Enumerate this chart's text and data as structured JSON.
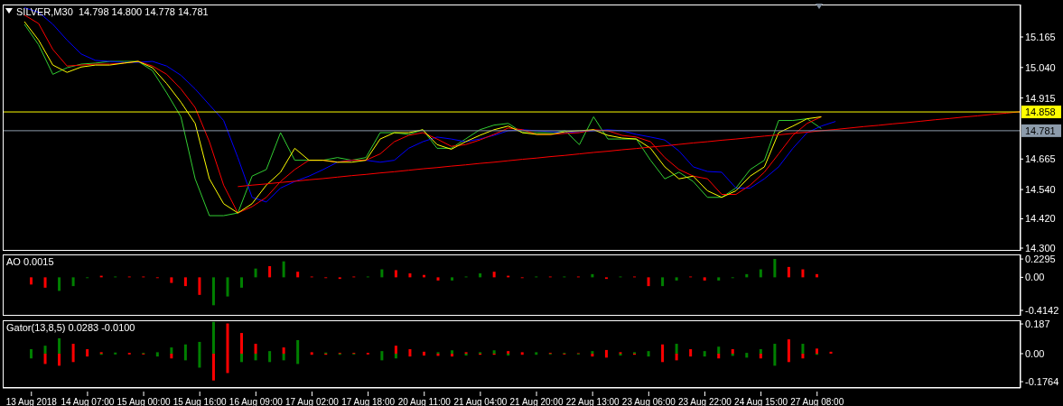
{
  "chart_data": [
    {
      "type": "line",
      "title": "SILVER,M30  14.798 14.800 14.778 14.781",
      "categories": [
        null,
        null,
        null,
        null,
        null,
        null,
        null,
        null,
        null,
        null,
        null,
        null,
        null,
        null,
        null,
        null,
        null,
        null,
        null,
        null,
        null,
        null,
        null,
        null,
        null,
        null,
        null,
        null,
        null,
        null,
        null,
        null,
        null,
        null,
        null,
        null,
        null,
        null,
        null,
        null,
        null,
        null,
        null,
        null,
        null,
        null,
        null,
        null,
        null,
        null,
        null,
        null,
        null,
        null,
        null,
        null,
        null,
        null,
        null,
        null,
        null,
        null,
        null,
        null,
        null,
        null,
        null,
        null,
        null,
        null,
        null
      ],
      "tick_labels": "y",
      "series": [
        {
          "color": "#32cd32",
          "values": [
            15.217,
            15.133,
            15.012,
            15.039,
            15.054,
            15.058,
            15.065,
            15.065,
            15.065,
            15.027,
            14.936,
            14.838,
            14.584,
            14.433,
            14.433,
            14.444,
            14.595,
            14.622,
            14.773,
            14.66,
            14.66,
            14.66,
            14.671,
            14.66,
            14.671,
            14.773,
            14.773,
            14.766,
            14.785,
            14.709,
            14.709,
            14.747,
            14.785,
            14.804,
            14.811,
            14.773,
            14.773,
            14.773,
            14.781,
            14.724,
            14.838,
            14.747,
            14.747,
            14.747,
            14.66,
            14.584,
            14.611,
            14.573,
            14.508,
            14.508,
            14.546,
            14.622,
            14.66,
            14.823,
            14.823,
            14.83,
            14.79,
            null,
            null,
            null,
            null,
            null,
            null,
            null,
            null,
            null,
            null,
            null,
            null,
            null,
            null
          ]
        },
        {
          "color": "#0000ff",
          "values": [
            15.285,
            15.266,
            15.217,
            15.152,
            15.095,
            15.069,
            15.065,
            15.061,
            15.061,
            15.065,
            15.046,
            15.008,
            14.952,
            14.887,
            14.823,
            14.671,
            14.508,
            14.489,
            14.546,
            14.573,
            14.595,
            14.622,
            14.652,
            14.66,
            14.66,
            14.652,
            14.66,
            14.709,
            14.736,
            14.755,
            14.747,
            14.736,
            14.747,
            14.762,
            14.781,
            14.785,
            14.781,
            14.777,
            14.773,
            14.777,
            14.781,
            14.785,
            14.781,
            14.766,
            14.755,
            14.743,
            14.698,
            14.633,
            14.614,
            14.611,
            14.546,
            14.546,
            14.584,
            14.633,
            14.709,
            14.773,
            14.8,
            14.819,
            null,
            null,
            null,
            null,
            null,
            null,
            null,
            null,
            null,
            null,
            null,
            null,
            null
          ]
        },
        {
          "color": "#ff0000",
          "values": [
            15.255,
            15.22,
            15.114,
            15.046,
            15.05,
            15.054,
            15.054,
            15.058,
            15.065,
            15.046,
            15.012,
            14.952,
            14.876,
            14.736,
            14.558,
            14.444,
            14.47,
            14.508,
            14.573,
            14.622,
            14.66,
            14.66,
            14.652,
            14.66,
            14.66,
            14.686,
            14.736,
            14.762,
            14.773,
            14.747,
            14.717,
            14.724,
            14.743,
            14.766,
            14.792,
            14.785,
            14.766,
            14.766,
            14.77,
            14.773,
            14.785,
            14.781,
            14.762,
            14.755,
            14.736,
            14.671,
            14.622,
            14.595,
            14.584,
            14.52,
            14.52,
            14.558,
            14.611,
            14.686,
            14.762,
            14.811,
            14.838,
            null,
            null,
            null,
            null,
            null,
            null,
            null,
            null,
            null,
            null,
            null,
            null,
            null,
            null
          ]
        },
        {
          "color": "#ffff00",
          "values": [
            15.228,
            15.152,
            15.05,
            15.02,
            15.042,
            15.05,
            15.05,
            15.058,
            15.065,
            15.039,
            14.974,
            14.898,
            14.811,
            14.584,
            14.482,
            14.444,
            14.482,
            14.558,
            14.611,
            14.709,
            14.66,
            14.66,
            14.652,
            14.652,
            14.66,
            14.747,
            14.773,
            14.773,
            14.785,
            14.724,
            14.705,
            14.736,
            14.762,
            14.785,
            14.8,
            14.773,
            14.766,
            14.766,
            14.777,
            14.781,
            14.785,
            14.762,
            14.751,
            14.747,
            14.709,
            14.633,
            14.584,
            14.595,
            14.535,
            14.508,
            14.535,
            14.595,
            14.633,
            14.773,
            14.8,
            14.83,
            14.838,
            null,
            null,
            null,
            null,
            null,
            null,
            null,
            null,
            null,
            null,
            null,
            null,
            null,
            null
          ]
        },
        {
          "color": "#ff0000",
          "values": [
            null,
            null,
            null,
            null,
            null,
            null,
            null,
            null,
            null,
            null,
            null,
            null,
            null,
            null,
            null,
            14.552,
            14.558,
            14.563,
            14.569,
            14.574,
            14.58,
            14.585,
            14.591,
            14.597,
            14.602,
            14.608,
            14.613,
            14.619,
            14.625,
            14.63,
            14.636,
            14.641,
            14.647,
            14.652,
            14.658,
            14.664,
            14.669,
            14.675,
            14.68,
            14.686,
            14.692,
            14.697,
            14.703,
            14.708,
            14.714,
            14.719,
            14.725,
            14.731,
            14.736,
            14.742,
            14.747,
            14.753,
            14.759,
            14.764,
            14.77,
            14.775,
            14.781,
            14.786,
            14.792,
            14.798,
            14.803,
            14.809,
            14.814,
            14.82,
            14.826,
            14.831,
            14.837,
            14.842,
            14.848,
            14.853,
            14.859
          ]
        }
      ],
      "ylim": [
        14.289,
        15.298
      ],
      "yticks": [
        {
          "value": 15.165,
          "label": "15.165"
        },
        {
          "value": 15.04,
          "label": "15.040"
        },
        {
          "value": 14.915,
          "label": "14.915"
        },
        {
          "value": 14.665,
          "label": "14.665"
        },
        {
          "value": 14.54,
          "label": "14.540"
        },
        {
          "value": 14.42,
          "label": "14.420"
        },
        {
          "value": 14.3,
          "label": "14.300"
        }
      ],
      "ref_lines": [
        {
          "axis": "y",
          "value": 14.858,
          "label": "14.858",
          "color": "#ffff00"
        },
        {
          "axis": "y",
          "value": 14.781,
          "label": "14.781",
          "color": "#8c9bab"
        }
      ]
    },
    {
      "type": "bar",
      "title": "AO 0.0015",
      "categories": [
        null,
        null,
        null,
        null,
        null,
        null,
        null,
        null,
        null,
        null,
        null,
        null,
        null,
        null,
        null,
        null,
        null,
        null,
        null,
        null,
        null,
        null,
        null,
        null,
        null,
        null,
        null,
        null,
        null,
        null,
        null,
        null,
        null,
        null,
        null,
        null,
        null,
        null,
        null,
        null,
        null,
        null,
        null,
        null,
        null,
        null,
        null,
        null,
        null,
        null,
        null,
        null,
        null,
        null,
        null,
        null,
        null,
        null,
        null,
        null,
        null,
        null,
        null,
        null,
        null,
        null,
        null,
        null,
        null,
        null,
        null
      ],
      "tick_labels": "y",
      "values": [
        -0.09,
        -0.13,
        -0.17,
        -0.11,
        -0.01,
        0.02,
        0.01,
        0.01,
        0.01,
        -0.01,
        -0.07,
        -0.11,
        -0.22,
        -0.35,
        -0.24,
        -0.13,
        0.11,
        0.14,
        0.2,
        0.07,
        0.01,
        -0.01,
        -0.02,
        0.01,
        0.01,
        0.1,
        0.09,
        0.05,
        0.03,
        -0.04,
        -0.04,
        0.01,
        0.05,
        0.07,
        0.02,
        -0.01,
        0.01,
        0.01,
        0.01,
        0.01,
        0.04,
        -0.02,
        0.01,
        0.01,
        -0.11,
        -0.11,
        -0.04,
        0.01,
        -0.04,
        -0.04,
        -0.01,
        0.04,
        0.1,
        0.23,
        0.13,
        0.1,
        0.04,
        null,
        null,
        null,
        null,
        null,
        null,
        null,
        null,
        null,
        null,
        null,
        null,
        null,
        null
      ],
      "colors": [
        "#ff0000",
        "#ff0000",
        "#008000",
        "#008000",
        "#008000",
        "#ff0000",
        "#008000",
        "#ff0000",
        "#ff0000",
        "#ff0000",
        "#ff0000",
        "#ff0000",
        "#ff0000",
        "#008000",
        "#008000",
        "#008000",
        "#008000",
        "#ff0000",
        "#008000",
        "#ff0000",
        "#ff0000",
        "#ff0000",
        "#ff0000",
        "#ff0000",
        "#008000",
        "#008000",
        "#ff0000",
        "#ff0000",
        "#ff0000",
        "#ff0000",
        "#008000",
        "#008000",
        "#008000",
        "#ff0000",
        "#ff0000",
        "#ff0000",
        "#008000",
        "#ff0000",
        "#008000",
        "#ff0000",
        "#008000",
        "#ff0000",
        "#008000",
        "#ff0000",
        "#ff0000",
        "#008000",
        "#008000",
        "#ff0000",
        "#ff0000",
        "#008000",
        "#008000",
        "#008000",
        "#008000",
        "#008000",
        "#ff0000",
        "#ff0000",
        "#ff0000",
        null,
        null,
        null,
        null,
        null,
        null,
        null,
        null,
        null,
        null,
        null,
        null,
        null,
        null
      ],
      "ylim": [
        -0.482,
        0.287
      ],
      "yticks": [
        0.2295,
        {
          "value": 0,
          "label": "0.00"
        },
        -0.4142
      ]
    },
    {
      "type": "bar",
      "title": "Gator(13,8,5) 0.0283 -0.0100",
      "stacked": true,
      "categories": [
        "13 Aug 2018",
        null,
        null,
        null,
        "14 Aug 07:00",
        null,
        null,
        null,
        "15 Aug 00:00",
        null,
        null,
        null,
        "15 Aug 16:00",
        null,
        null,
        null,
        "16 Aug 09:00",
        null,
        null,
        null,
        "17 Aug 02:00",
        null,
        null,
        null,
        "17 Aug 18:00",
        null,
        null,
        null,
        "20 Aug 11:00",
        null,
        null,
        null,
        "21 Aug 04:00",
        null,
        null,
        null,
        "21 Aug 20:00",
        null,
        null,
        null,
        "22 Aug 13:00",
        null,
        null,
        null,
        "23 Aug 06:00",
        null,
        null,
        null,
        "23 Aug 22:00",
        null,
        null,
        null,
        "24 Aug 15:00",
        null,
        null,
        null,
        "27 Aug 08:00",
        null,
        null,
        null,
        null,
        null,
        null,
        null,
        null,
        null,
        null,
        null,
        null,
        null,
        null
      ],
      "series": [
        {
          "values": [
            0.028,
            0.05,
            0.097,
            0.062,
            0.028,
            0.009,
            0.007,
            0.005,
            0.005,
            0.009,
            0.039,
            0.058,
            0.074,
            0.2,
            0.19,
            0.13,
            0.062,
            0.016,
            0.039,
            0.085,
            0.009,
            0.007,
            0.005,
            0.005,
            0.005,
            0.016,
            0.05,
            0.028,
            0.012,
            0.009,
            0.021,
            0.009,
            0.009,
            0.021,
            0.016,
            0.009,
            0.009,
            0.005,
            0.005,
            0.003,
            0.016,
            0.023,
            0.009,
            0.009,
            0.016,
            0.058,
            0.062,
            0.028,
            0.016,
            0.044,
            0.028,
            0.005,
            0.028,
            0.062,
            0.09,
            0.062,
            0.032,
            0.012,
            null,
            null,
            null,
            null,
            null,
            null,
            null,
            null,
            null,
            null,
            null,
            null,
            null
          ],
          "colors": [
            "#008000",
            "#008000",
            "#008000",
            "#ff0000",
            "#ff0000",
            "#ff0000",
            "#008000",
            "#ff0000",
            "#008000",
            "#008000",
            "#008000",
            "#008000",
            "#008000",
            "#008000",
            "#ff0000",
            "#ff0000",
            "#ff0000",
            "#008000",
            "#ff0000",
            "#008000",
            "#ff0000",
            "#008000",
            "#ff0000",
            "#ff0000",
            "#ff0000",
            "#008000",
            "#ff0000",
            "#ff0000",
            "#ff0000",
            "#008000",
            "#008000",
            "#ff0000",
            "#008000",
            "#008000",
            "#ff0000",
            "#ff0000",
            "#008000",
            "#ff0000",
            "#008000",
            "#ff0000",
            "#008000",
            "#ff0000",
            "#ff0000",
            "#008000",
            "#008000",
            "#ff0000",
            "#008000",
            "#ff0000",
            "#008000",
            "#008000",
            "#ff0000",
            "#008000",
            "#008000",
            "#008000",
            "#ff0000",
            "#008000",
            "#ff0000",
            "#ff0000",
            null,
            null,
            null,
            null,
            null,
            null,
            null,
            null,
            null,
            null,
            null,
            null,
            null
          ]
        },
        {
          "values": [
            -0.03,
            -0.065,
            -0.076,
            -0.053,
            -0.018,
            -0.007,
            -0.005,
            -0.005,
            -0.005,
            -0.018,
            -0.03,
            -0.042,
            -0.088,
            -0.169,
            -0.122,
            -0.053,
            -0.042,
            -0.053,
            -0.042,
            -0.065,
            -0.007,
            -0.007,
            -0.007,
            -0.005,
            -0.005,
            -0.042,
            -0.03,
            -0.018,
            -0.012,
            -0.014,
            -0.018,
            -0.012,
            -0.007,
            -0.007,
            -0.012,
            -0.007,
            -0.007,
            -0.005,
            -0.005,
            -0.005,
            -0.018,
            -0.025,
            -0.012,
            -0.007,
            -0.018,
            -0.053,
            -0.042,
            -0.018,
            -0.018,
            -0.03,
            -0.014,
            -0.025,
            -0.03,
            -0.076,
            -0.053,
            -0.03,
            -0.007,
            null,
            null,
            null,
            null,
            null,
            null,
            null,
            null,
            null,
            null,
            null,
            null,
            null,
            null
          ],
          "colors": [
            "#008000",
            "#ff0000",
            "#ff0000",
            "#ff0000",
            "#ff0000",
            "#008000",
            "#008000",
            "#ff0000",
            "#ff0000",
            "#008000",
            "#ff0000",
            "#008000",
            "#008000",
            "#ff0000",
            "#ff0000",
            "#008000",
            "#008000",
            "#008000",
            "#008000",
            "#008000",
            "#ff0000",
            "#ff0000",
            "#008000",
            "#008000",
            "#ff0000",
            "#008000",
            "#008000",
            "#ff0000",
            "#ff0000",
            "#ff0000",
            "#ff0000",
            "#008000",
            "#ff0000",
            "#ff0000",
            "#008000",
            "#ff0000",
            "#008000",
            "#008000",
            "#ff0000",
            "#008000",
            "#ff0000",
            "#ff0000",
            "#008000",
            "#ff0000",
            "#008000",
            "#ff0000",
            "#ff0000",
            "#ff0000",
            "#008000",
            "#ff0000",
            "#008000",
            "#008000",
            "#ff0000",
            "#008000",
            "#ff0000",
            "#ff0000",
            "#008000",
            null,
            null,
            null,
            null,
            null,
            null,
            null,
            null,
            null,
            null,
            null,
            null,
            null,
            null
          ]
        }
      ],
      "ylim": [
        -0.216,
        0.21
      ],
      "yticks": [
        0.187,
        {
          "value": 0,
          "label": "0.00"
        },
        -0.1764
      ]
    }
  ]
}
